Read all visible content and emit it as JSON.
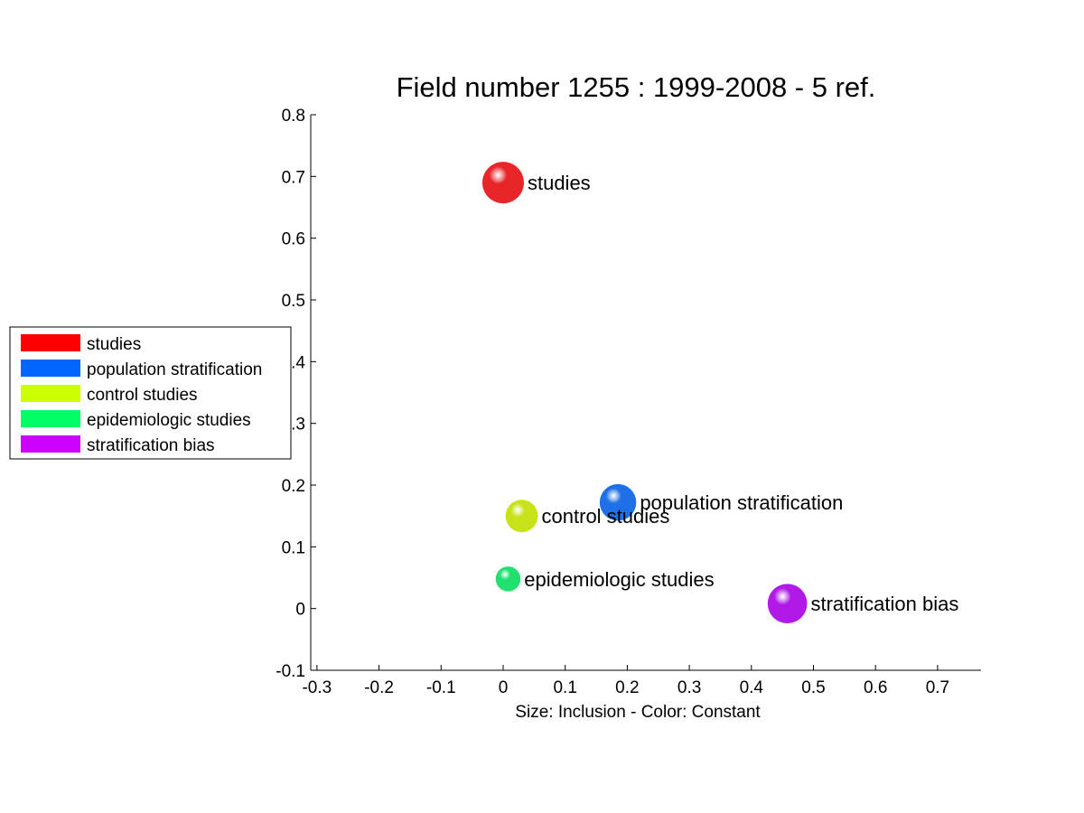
{
  "chart_data": {
    "type": "scatter",
    "title": "Field number 1255 : 1999-2008  - 5 ref.",
    "xlabel": "Size: Inclusion - Color: Constant",
    "ylabel": "",
    "xlim": [
      -0.31,
      0.77
    ],
    "ylim": [
      -0.1,
      0.8
    ],
    "xticks": [
      "-0.3",
      "-0.2",
      "-0.1",
      "0",
      "0.1",
      "0.2",
      "0.3",
      "0.4",
      "0.5",
      "0.6",
      "0.7"
    ],
    "yticks": [
      "-0.1",
      "0",
      "0.1",
      "0.2",
      "0.3",
      "0.4",
      "0.5",
      "0.6",
      "0.7",
      "0.8"
    ],
    "grid": false,
    "legend_position": "left",
    "points": [
      {
        "label": "studies",
        "x": 0.0,
        "y": 0.69,
        "size": 1.0,
        "color": "#e8262a"
      },
      {
        "label": "population stratification",
        "x": 0.185,
        "y": 0.172,
        "size": 0.88,
        "color": "#1f6fe6"
      },
      {
        "label": "control studies",
        "x": 0.03,
        "y": 0.15,
        "size": 0.78,
        "color": "#c8e21a"
      },
      {
        "label": "epidemiologic studies",
        "x": 0.008,
        "y": 0.048,
        "size": 0.6,
        "color": "#20e070"
      },
      {
        "label": "stratification bias",
        "x": 0.458,
        "y": 0.008,
        "size": 0.95,
        "color": "#b11ae6"
      }
    ],
    "legend": [
      {
        "label": "studies",
        "color": "#ff0000"
      },
      {
        "label": "population stratification",
        "color": "#0066ff"
      },
      {
        "label": "control studies",
        "color": "#ccff00"
      },
      {
        "label": "epidemiologic studies",
        "color": "#00ff66"
      },
      {
        "label": "stratification bias",
        "color": "#cc00ff"
      }
    ]
  }
}
